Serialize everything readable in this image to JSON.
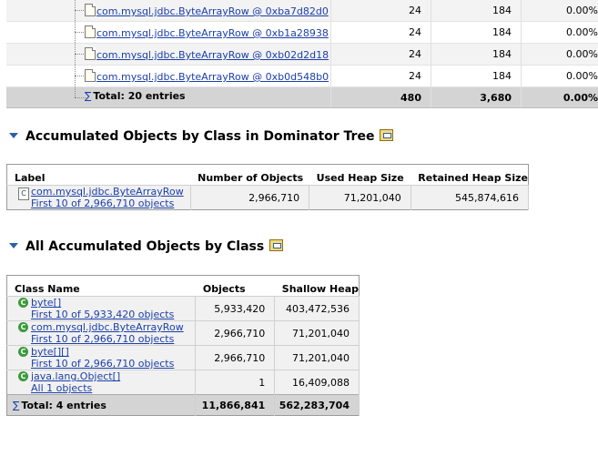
{
  "top_table": {
    "rows": [
      {
        "label": "com.mysql.jdbc.ByteArrayRow @ 0xba7d82d0",
        "objects": "24",
        "shallow": "184",
        "percent": "0.00%"
      },
      {
        "label": "com.mysql.jdbc.ByteArrayRow @ 0xb1a28938",
        "objects": "24",
        "shallow": "184",
        "percent": "0.00%"
      },
      {
        "label": "com.mysql.jdbc.ByteArrayRow @ 0xb02d2d18",
        "objects": "24",
        "shallow": "184",
        "percent": "0.00%"
      },
      {
        "label": "com.mysql.jdbc.ByteArrayRow @ 0xb0d548b0",
        "objects": "24",
        "shallow": "184",
        "percent": "0.00%"
      }
    ],
    "total": {
      "label": "Total: 20 entries",
      "objects": "480",
      "shallow": "3,680",
      "percent": "0.00%"
    }
  },
  "section1": {
    "title": "Accumulated Objects by Class in Dominator Tree",
    "headers": {
      "label": "Label",
      "objects": "Number of Objects",
      "used": "Used Heap Size",
      "retained": "Retained Heap Size"
    },
    "row": {
      "class": "com.mysql.jdbc.ByteArrayRow",
      "first": "First 10 of 2,966,710 objects",
      "objects": "2,966,710",
      "used": "71,201,040",
      "retained": "545,874,616"
    }
  },
  "section2": {
    "title": "All Accumulated Objects by Class",
    "headers": {
      "class": "Class Name",
      "objects": "Objects",
      "shallow": "Shallow Heap"
    },
    "rows": [
      {
        "class": "byte[]",
        "first": "First 10 of 5,933,420 objects",
        "objects": "5,933,420",
        "shallow": "403,472,536"
      },
      {
        "class": "com.mysql.jdbc.ByteArrayRow",
        "first": "First 10 of 2,966,710 objects",
        "objects": "2,966,710",
        "shallow": "71,201,040"
      },
      {
        "class": "byte[][]",
        "first": "First 10 of 2,966,710 objects",
        "objects": "2,966,710",
        "shallow": "71,201,040"
      },
      {
        "class": "java.lang.Object[]",
        "first": "All 1 objects",
        "objects": "1",
        "shallow": "16,409,088"
      }
    ],
    "total": {
      "label": "Total: 4 entries",
      "objects": "11,866,841",
      "shallow": "562,283,704"
    }
  },
  "icons": {
    "class_icon": "class-c-icon",
    "doc_icon": "object-file-icon",
    "sum_icon": "sigma-icon",
    "query_icon": "open-query-icon",
    "collapse_icon": "collapse-triangle-icon"
  },
  "colors": {
    "link": "#1b3fa8",
    "total_row": "#d4d4d4",
    "class_icon": "#3a9a3a",
    "triangle": "#2a60a8"
  }
}
